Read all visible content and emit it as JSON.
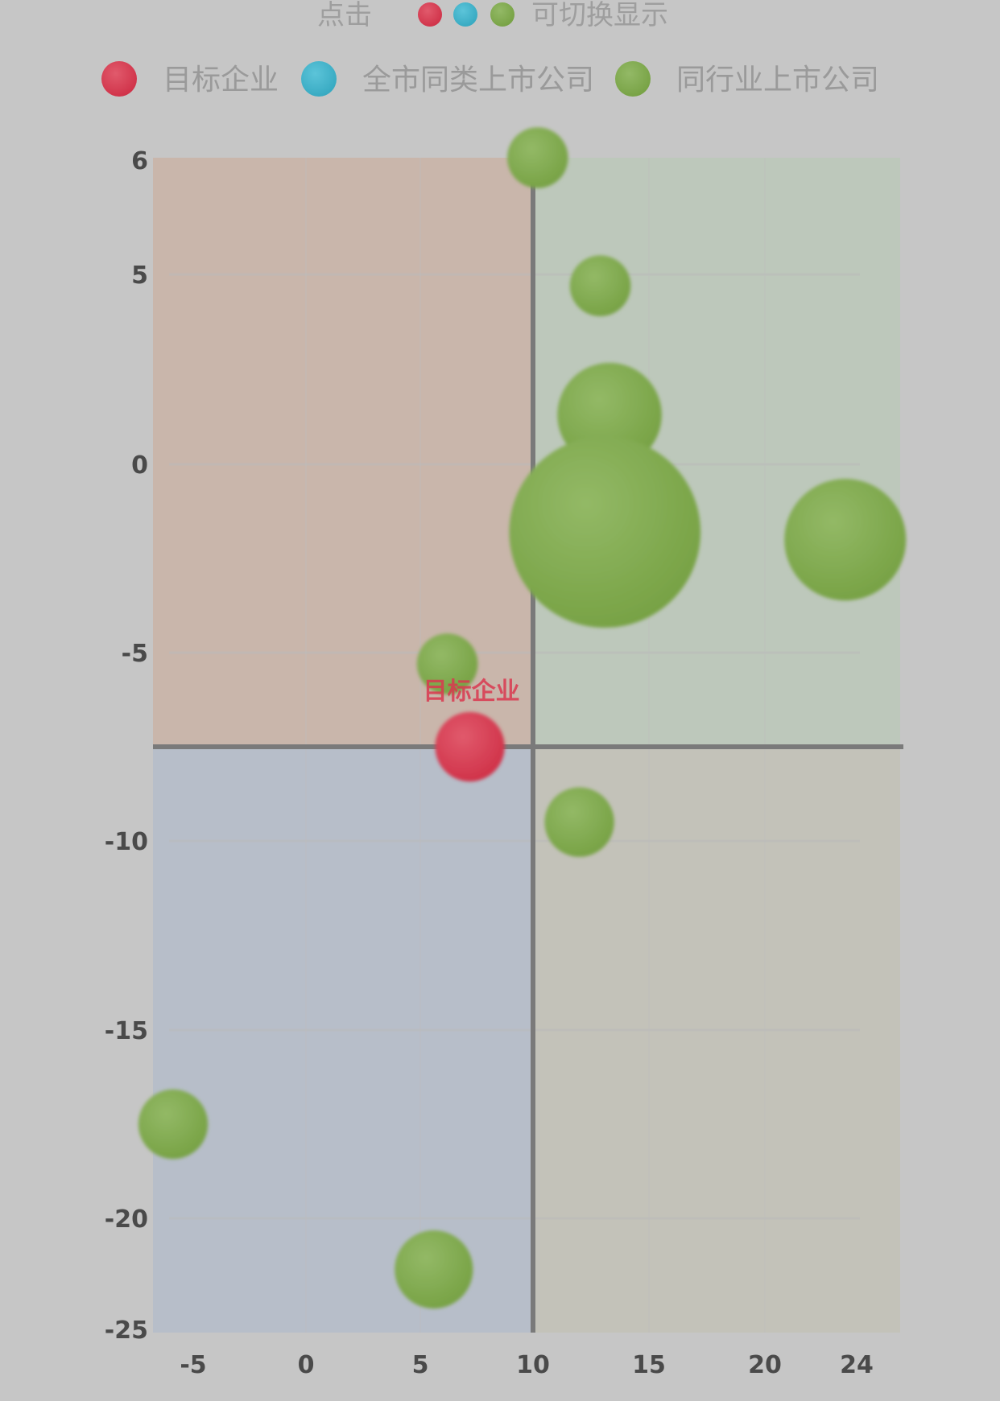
{
  "header": {
    "prefix": "点击",
    "suffix": "可切换显示"
  },
  "colors": {
    "target": "#d9384f",
    "sample": "#3cb4cc",
    "peer": "#7eaa4c",
    "quadrant_top_left": "#c9b6ab",
    "quadrant_top_right": "#bdc8bb",
    "quadrant_bottom_left": "#b7bec9",
    "quadrant_bottom_right": "#c3c2b9",
    "axis": "#7a7a7a",
    "tick": "#4a4a4a"
  },
  "chart_data": {
    "type": "scatter",
    "title": "",
    "xlabel": "",
    "ylabel": "",
    "xlim": [
      -7,
      25.5
    ],
    "ylim": [
      -25.5,
      6.5
    ],
    "x_ticks": [
      -5,
      0,
      5,
      10,
      15,
      20,
      24
    ],
    "y_ticks": [
      6,
      5,
      0,
      -5,
      -10,
      -15,
      -20,
      -25
    ],
    "x_tick_labels": [
      "-5",
      "0",
      "5",
      "10",
      "15",
      "20",
      "24"
    ],
    "y_tick_labels": [
      "6",
      "5",
      "0",
      "-5",
      "-10",
      "-15",
      "-20",
      "-25"
    ],
    "quadrant_split": {
      "x": 10,
      "y": -7.5
    },
    "grid": true,
    "legend_position": "top",
    "series": [
      {
        "name": "目标企业",
        "key": "target",
        "points": [
          {
            "x": 7.2,
            "y": -7.5,
            "size": 4,
            "label": "目标企业"
          }
        ]
      },
      {
        "name": "全市同类上市公司",
        "key": "sample",
        "points": []
      },
      {
        "name": "同行业上市公司",
        "key": "peer",
        "points": [
          {
            "x": 10.2,
            "y": 6.5,
            "size": 3.5
          },
          {
            "x": 12.9,
            "y": 4.7,
            "size": 3.5
          },
          {
            "x": 13.3,
            "y": 1.3,
            "size": 6
          },
          {
            "x": 13.1,
            "y": -1.8,
            "size": 11
          },
          {
            "x": 23.5,
            "y": -2.0,
            "size": 7
          },
          {
            "x": 6.2,
            "y": -5.3,
            "size": 3.5
          },
          {
            "x": 12.0,
            "y": -9.5,
            "size": 4
          },
          {
            "x": -6.0,
            "y": -17.5,
            "size": 4
          },
          {
            "x": 5.6,
            "y": -22.3,
            "size": 4.5
          }
        ]
      }
    ]
  }
}
